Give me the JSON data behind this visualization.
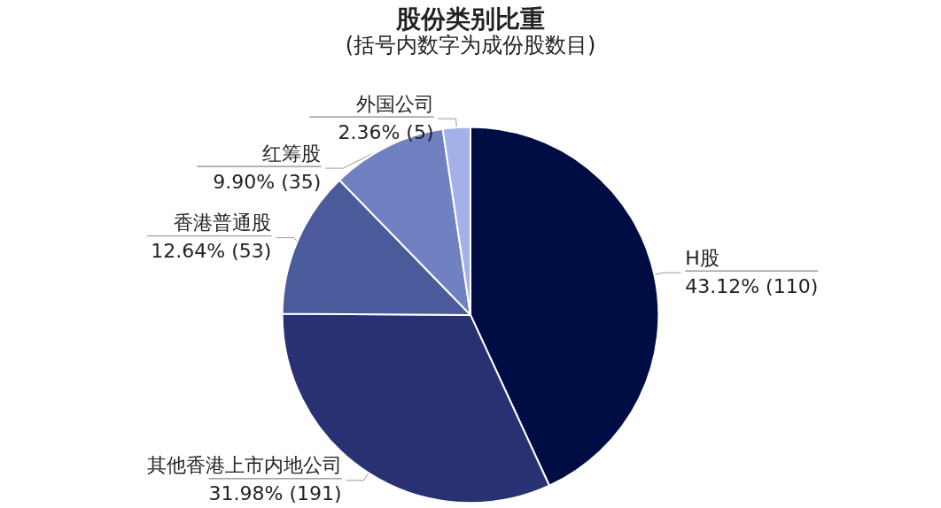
{
  "chart_data": {
    "type": "pie",
    "title": "股份类别比重",
    "subtitle": "(括号内数字为成份股数目)",
    "categories": [
      "H股",
      "其他香港上市内地公司",
      "香港普通股",
      "红筹股",
      "外国公司"
    ],
    "values": [
      43.12,
      31.98,
      12.64,
      9.9,
      2.36
    ],
    "value_labels": [
      "43.12% (110)",
      "31.98% (191)",
      "12.64% (53)",
      "9.90% (35)",
      "2.36% (5)"
    ],
    "colors": [
      "#000d45",
      "#283272",
      "#4b5a9a",
      "#6f81c0",
      "#a4b0e8"
    ],
    "legend": false
  }
}
